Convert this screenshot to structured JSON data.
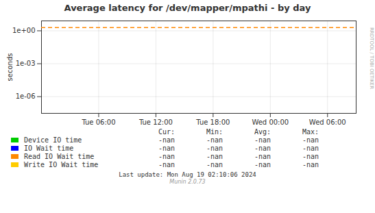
{
  "chart_data": {
    "type": "line",
    "title": "Average latency for /dev/mapper/mpathi - by day",
    "y_label": "seconds",
    "log": "y",
    "grid": true,
    "xlim": [
      0,
      33
    ],
    "xticks": [
      {
        "value": 6,
        "label": "Tue 06:00"
      },
      {
        "value": 12,
        "label": "Tue 12:00"
      },
      {
        "value": 18,
        "label": "Tue 18:00"
      },
      {
        "value": 24,
        "label": "Wed 00:00"
      },
      {
        "value": 30,
        "label": "Wed 06:00"
      }
    ],
    "ylim": [
      3e-08,
      8.0
    ],
    "yticks": [
      {
        "value": 1e-06,
        "label": "1e-06"
      },
      {
        "value": 0.001,
        "label": "1e-03"
      },
      {
        "value": 1.0,
        "label": "1e+00"
      }
    ],
    "lines": [
      {
        "y": 2.0,
        "color": "#ff8800",
        "line_style": "dashed"
      }
    ],
    "legend_columns": [
      "Cur:",
      "Min:",
      "Avg:",
      "Max:"
    ],
    "series": [
      {
        "name": "Device IO time",
        "color": "#00cc00",
        "values": [],
        "stats": [
          "-nan",
          "-nan",
          "-nan",
          "-nan"
        ]
      },
      {
        "name": "IO Wait time",
        "color": "#0000ff",
        "values": [],
        "stats": [
          "-nan",
          "-nan",
          "-nan",
          "-nan"
        ]
      },
      {
        "name": "Read IO Wait time",
        "color": "#ff8800",
        "values": [],
        "stats": [
          "-nan",
          "-nan",
          "-nan",
          "-nan"
        ]
      },
      {
        "name": "Write IO Wait time",
        "color": "#ffcc00",
        "values": [],
        "stats": [
          "-nan",
          "-nan",
          "-nan",
          "-nan"
        ]
      }
    ],
    "footer": "Last update: Mon Aug 19 02:10:06 2024",
    "watermark": "Munin 2.0.73",
    "side_text": "RRDTOOL / TOBI OETIKER"
  }
}
